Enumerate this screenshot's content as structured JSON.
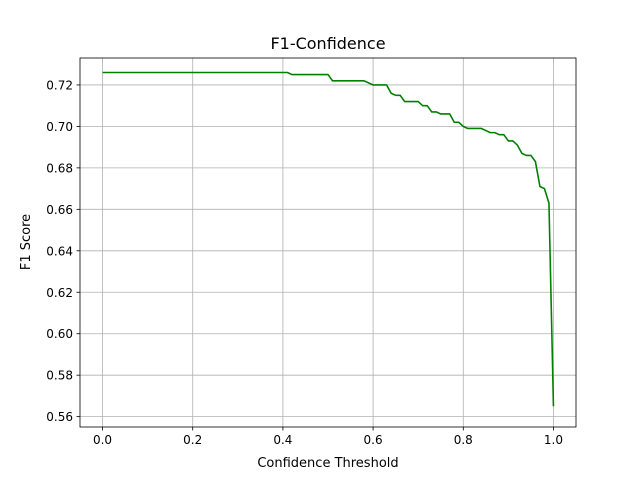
{
  "chart_data": {
    "type": "line",
    "title": "F1-Confidence",
    "xlabel": "Confidence Threshold",
    "ylabel": "F1 Score",
    "xlim": [
      -0.05,
      1.05
    ],
    "ylim": [
      0.555,
      0.733
    ],
    "x_ticks": [
      0.0,
      0.2,
      0.4,
      0.6,
      0.8,
      1.0
    ],
    "x_tick_labels": [
      "0.0",
      "0.2",
      "0.4",
      "0.6",
      "0.8",
      "1.0"
    ],
    "y_ticks": [
      0.56,
      0.58,
      0.6,
      0.62,
      0.64,
      0.66,
      0.68,
      0.7,
      0.72
    ],
    "y_tick_labels": [
      "0.56",
      "0.58",
      "0.60",
      "0.62",
      "0.64",
      "0.66",
      "0.68",
      "0.70",
      "0.72"
    ],
    "grid": true,
    "legend": false,
    "series": [
      {
        "color": "#008000",
        "x": [
          0.0,
          0.4,
          0.41,
          0.42,
          0.5,
          0.51,
          0.52,
          0.58,
          0.59,
          0.6,
          0.61,
          0.63,
          0.64,
          0.65,
          0.66,
          0.67,
          0.68,
          0.7,
          0.71,
          0.72,
          0.73,
          0.74,
          0.75,
          0.77,
          0.78,
          0.79,
          0.8,
          0.81,
          0.83,
          0.84,
          0.85,
          0.86,
          0.87,
          0.88,
          0.89,
          0.9,
          0.91,
          0.92,
          0.93,
          0.94,
          0.95,
          0.96,
          0.97,
          0.98,
          0.99,
          1.0
        ],
        "y": [
          0.726,
          0.726,
          0.726,
          0.725,
          0.725,
          0.722,
          0.722,
          0.722,
          0.721,
          0.72,
          0.72,
          0.72,
          0.716,
          0.715,
          0.715,
          0.712,
          0.712,
          0.712,
          0.71,
          0.71,
          0.707,
          0.707,
          0.706,
          0.706,
          0.702,
          0.702,
          0.7,
          0.699,
          0.699,
          0.699,
          0.698,
          0.697,
          0.697,
          0.696,
          0.696,
          0.693,
          0.693,
          0.691,
          0.687,
          0.686,
          0.686,
          0.683,
          0.671,
          0.67,
          0.663,
          0.565
        ]
      }
    ]
  }
}
